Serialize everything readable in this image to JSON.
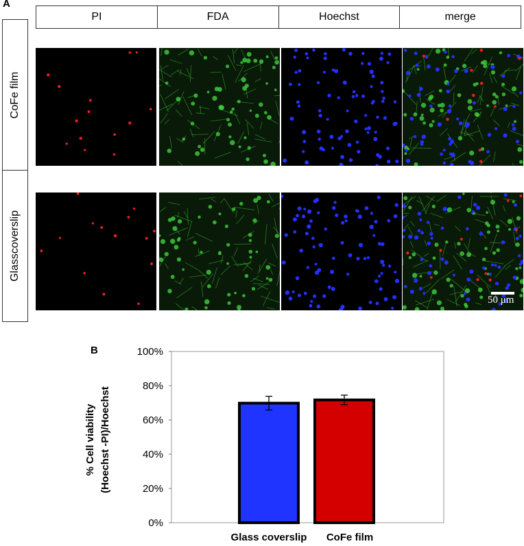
{
  "panel_a_label": "A",
  "panel_b_label": "B",
  "columns": [
    "PI",
    "FDA",
    "Hoechst",
    "merge"
  ],
  "rows": [
    "CoFe film",
    "Glasscoverslip"
  ],
  "scale_bar_label": "50 μm",
  "colors": {
    "pi": "#e61e1e",
    "fda": "#3fcf3f",
    "hoechst": "#2430ff",
    "bar_glass": "#1f35ff",
    "bar_cofe": "#d40000"
  },
  "chart_data": {
    "type": "bar",
    "categories": [
      "Glass coverslip",
      "CoFe film"
    ],
    "values": [
      69.8,
      71.7
    ],
    "errors": [
      4.0,
      2.8
    ],
    "ylim": [
      0,
      100
    ],
    "ytick_labels": [
      "0%",
      "20%",
      "40%",
      "60%",
      "80%",
      "100%"
    ],
    "ylabel_lines": [
      "% Cell viability",
      "(Hoechst -PI)/Hoechst"
    ],
    "grid": false
  }
}
